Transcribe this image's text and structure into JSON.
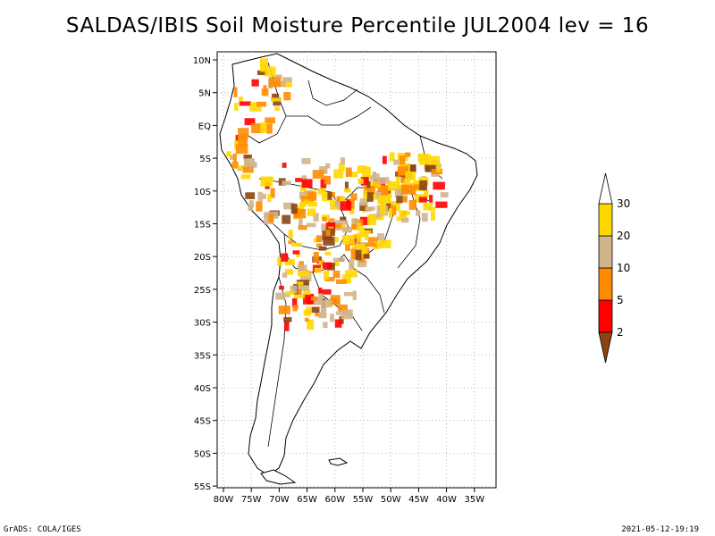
{
  "title": "SALDAS/IBIS Soil Moisture Percentile JUL2004 lev = 16",
  "lat_labels": [
    "10N",
    "5N",
    "EQ",
    "5S",
    "10S",
    "15S",
    "20S",
    "25S",
    "30S",
    "35S",
    "40S",
    "45S",
    "50S",
    "55S"
  ],
  "lon_labels": [
    "80W",
    "75W",
    "70W",
    "65W",
    "60W",
    "55W",
    "50W",
    "45W",
    "40W",
    "35W"
  ],
  "colorbar": {
    "levels": [
      "2",
      "5",
      "10",
      "20",
      "30"
    ],
    "colors": [
      "#8B4513",
      "#ff0000",
      "#ff8c00",
      "#d2b48c",
      "#ffd700"
    ]
  },
  "footer": {
    "left": "GrADS: COLA/IGES",
    "right": "2021-05-12-19:19"
  }
}
